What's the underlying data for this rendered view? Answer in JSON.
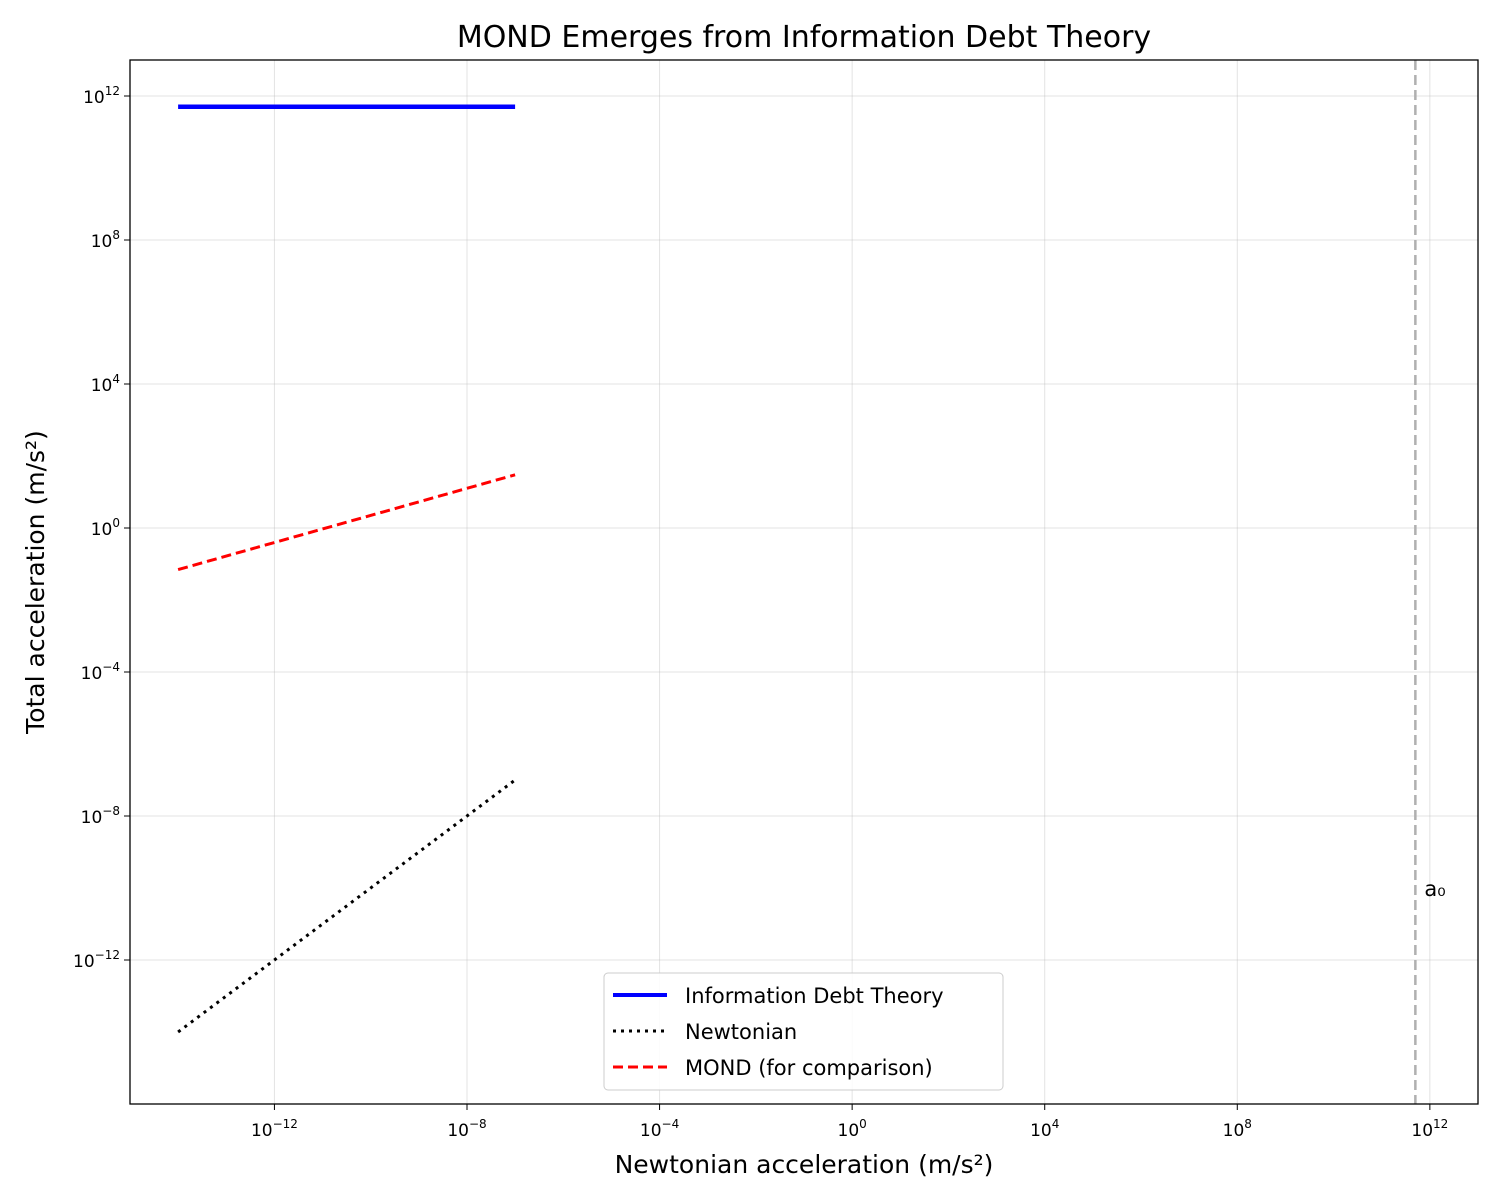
{
  "chart_data": {
    "type": "line",
    "title": "MOND Emerges from Information Debt Theory",
    "xlabel": "Newtonian acceleration (m/s²)",
    "ylabel": "Total acceleration (m/s²)",
    "x_scale": "log",
    "y_scale": "log",
    "xlim": [
      1e-15,
      10000000000000.0
    ],
    "ylim": [
      1e-16,
      10000000000000.0
    ],
    "grid": true,
    "legend_position": "lower center",
    "x_ticks": [
      {
        "base": "10",
        "exp": "−12",
        "value": 1e-12
      },
      {
        "base": "10",
        "exp": "−8",
        "value": 1e-08
      },
      {
        "base": "10",
        "exp": "−4",
        "value": 0.0001
      },
      {
        "base": "10",
        "exp": "0",
        "value": 1
      },
      {
        "base": "10",
        "exp": "4",
        "value": 10000.0
      },
      {
        "base": "10",
        "exp": "8",
        "value": 100000000.0
      },
      {
        "base": "10",
        "exp": "12",
        "value": 1000000000000.0
      }
    ],
    "y_ticks": [
      {
        "base": "10",
        "exp": "12",
        "value": 1000000000000.0
      },
      {
        "base": "10",
        "exp": "8",
        "value": 100000000.0
      },
      {
        "base": "10",
        "exp": "4",
        "value": 10000.0
      },
      {
        "base": "10",
        "exp": "0",
        "value": 1
      },
      {
        "base": "10",
        "exp": "−4",
        "value": 0.0001
      },
      {
        "base": "10",
        "exp": "−8",
        "value": 1e-08
      },
      {
        "base": "10",
        "exp": "−12",
        "value": 1e-12
      }
    ],
    "series": [
      {
        "name": "Information Debt Theory",
        "color": "#0000ff",
        "style": "solid",
        "x": [
          1e-14,
          1e-07
        ],
        "y": [
          500000000000.0,
          500000000000.0
        ]
      },
      {
        "name": "Newtonian",
        "color": "#000000",
        "style": "dotted",
        "x": [
          1e-14,
          1e-07
        ],
        "y": [
          1e-14,
          1e-07
        ]
      },
      {
        "name": "MOND (for comparison)",
        "color": "#ff0000",
        "style": "dashed",
        "x": [
          1e-14,
          1e-07
        ],
        "y": [
          0.07,
          30
        ]
      }
    ],
    "vline": {
      "x": 500000000000.0,
      "color": "#b0b0b0",
      "style": "dashed",
      "label": "a₀",
      "label_y": 1e-10
    }
  }
}
